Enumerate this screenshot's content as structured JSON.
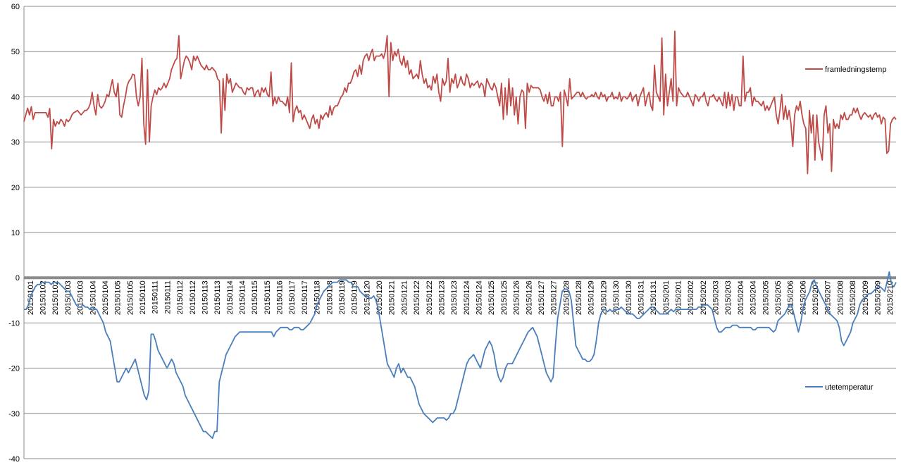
{
  "chart_data": {
    "type": "line",
    "title": "",
    "xlabel": "",
    "ylabel": "",
    "ylim": [
      -40,
      60
    ],
    "yticks": [
      "60",
      "50",
      "40",
      "30",
      "20",
      "10",
      "0",
      "-10",
      "-20",
      "-30",
      "-40"
    ],
    "grid": true,
    "legend_position": "right",
    "x_tick_labels": [
      "20150101",
      "20150102",
      "20150102",
      "20150103",
      "20150103",
      "20150104",
      "20150104",
      "20150105",
      "20150105",
      "20150110",
      "20150111",
      "20150111",
      "20150112",
      "20150112",
      "20150113",
      "20150113",
      "20150114",
      "20150114",
      "20150115",
      "20150115",
      "20150116",
      "20150117",
      "20150117",
      "20150118",
      "20150118",
      "20150119",
      "20150119",
      "20150120",
      "20150120",
      "20150121",
      "20150121",
      "20150122",
      "20150122",
      "20150123",
      "20150123",
      "20150124",
      "20150124",
      "20150125",
      "20150125",
      "20150126",
      "20150126",
      "20150127",
      "20150127",
      "20150128",
      "20150128",
      "20150129",
      "20150129",
      "20150130",
      "20150130",
      "20150131",
      "20150131",
      "20150201",
      "20150201",
      "20150202",
      "20150202",
      "20150203",
      "20150203",
      "20150204",
      "20150204",
      "20150205",
      "20150205",
      "20150206",
      "20150206",
      "20150207",
      "20150207",
      "20150208",
      "20150208",
      "20150209",
      "20150209",
      "20150210"
    ],
    "series": [
      {
        "name": "framledningstemp",
        "color": "#be4b48",
        "values": [
          34.5,
          36,
          37.5,
          36,
          37.8,
          35,
          36.5,
          36.5,
          36.5,
          36.5,
          36.5,
          36.5,
          36.5,
          35.5,
          37.4,
          28.5,
          35,
          33.5,
          34.5,
          34,
          35,
          34.5,
          33.5,
          35,
          34.5,
          35,
          36,
          36.5,
          36.7,
          37,
          36.5,
          36,
          36.5,
          37,
          37,
          37.5,
          38.5,
          41,
          38,
          36,
          40.5,
          38,
          37.5,
          38,
          39,
          40.5,
          40,
          42,
          43.8,
          41,
          40,
          43,
          36,
          35.5,
          38,
          40,
          42.5,
          43.5,
          44,
          45,
          44.8,
          40,
          38,
          40,
          48.5,
          34,
          29.5,
          46,
          30,
          38,
          40,
          41.5,
          40.5,
          42,
          41.5,
          42,
          43,
          42,
          43,
          44,
          46,
          47,
          48,
          48.5,
          53.5,
          44,
          46,
          48,
          49,
          48.5,
          47.5,
          46,
          49,
          48,
          49,
          48,
          47,
          46.5,
          46,
          47,
          46,
          46,
          46.5,
          46,
          45.5,
          44,
          43.5,
          32,
          44,
          37,
          45,
          43,
          44,
          41,
          42,
          43,
          42.5,
          42,
          42,
          41,
          40.5,
          42,
          41.5,
          42,
          42,
          40,
          41,
          41.5,
          40,
          42,
          41,
          42,
          40.5,
          40,
          45.5,
          38,
          40,
          38.5,
          40,
          39,
          39,
          38.5,
          38,
          40,
          36.5,
          47.5,
          34.5,
          37,
          38,
          36.5,
          37,
          35,
          36,
          35,
          34,
          33,
          35,
          36,
          34,
          35,
          33,
          36,
          35,
          36,
          36.5,
          35.5,
          38,
          36,
          37.5,
          38,
          38,
          39,
          40,
          40.5,
          42,
          41,
          43,
          43,
          44,
          45.5,
          46,
          44.5,
          47,
          45,
          48,
          49,
          49.5,
          48,
          49.5,
          50.5,
          48,
          49,
          49,
          49,
          49.5,
          48.5,
          50,
          53.5,
          40,
          52,
          48,
          50,
          49,
          50.5,
          48,
          47,
          49,
          46.5,
          48,
          45,
          46,
          44,
          44.5,
          45,
          44,
          48,
          45,
          43,
          44,
          42,
          42.5,
          41.5,
          44.5,
          43,
          45,
          41,
          39,
          44,
          42.5,
          43.5,
          48.5,
          41,
          44,
          43,
          45,
          42,
          43,
          44.5,
          43,
          42.5,
          45,
          44,
          42,
          43,
          42.5,
          43,
          43.5,
          42,
          43,
          42.5,
          40,
          44,
          43,
          42,
          41.5,
          43,
          42,
          40,
          38,
          43,
          35,
          42,
          36,
          44,
          38,
          42,
          36,
          40,
          34,
          40,
          41.5,
          41,
          33,
          43,
          41,
          42.5,
          42,
          42,
          42,
          42,
          41.5,
          40,
          39,
          40.5,
          38.5,
          41,
          38,
          38,
          40,
          40,
          39,
          41,
          29,
          41.5,
          40,
          38,
          44,
          39.5,
          40,
          40.5,
          41,
          41,
          40,
          41,
          40,
          39.5,
          40,
          40,
          40.5,
          40,
          41,
          40,
          39.5,
          41,
          40,
          40.5,
          39,
          40,
          40,
          41,
          39.5,
          40,
          39.5,
          41,
          39,
          40,
          40,
          39.5,
          40,
          41,
          39,
          40,
          40.5,
          38,
          40,
          41,
          42,
          38,
          40,
          41,
          38,
          37,
          47,
          41,
          40,
          39,
          53,
          36,
          45,
          38,
          41,
          44,
          39,
          54.5,
          38,
          42,
          41,
          40.5,
          40,
          40,
          41,
          40,
          39,
          38,
          40.5,
          40,
          39,
          40,
          40,
          41,
          39,
          38,
          40,
          40,
          40.5,
          39.5,
          39,
          40,
          39,
          38,
          41,
          37.5,
          41,
          38,
          40.5,
          37,
          40,
          40,
          38,
          38,
          49,
          39,
          41,
          41,
          42,
          38,
          40,
          39,
          39,
          38.5,
          38,
          39,
          37,
          38,
          37,
          38,
          39,
          40,
          36,
          34,
          37,
          40.5,
          35,
          38,
          35,
          37,
          34,
          29,
          36,
          38,
          37,
          39,
          36,
          34,
          33,
          23,
          37,
          32,
          36,
          26,
          36,
          30,
          28,
          26,
          36,
          38,
          32,
          34,
          23.5,
          35,
          33,
          34,
          33,
          36,
          35,
          36.5,
          35,
          35,
          36,
          36,
          37.5,
          36.5,
          37.5,
          36,
          35,
          36,
          36.5,
          36,
          35.5,
          36,
          35,
          36,
          36.5,
          35.5,
          36,
          34,
          35.5,
          35,
          27.5,
          28,
          34,
          35,
          35.5,
          35
        ]
      },
      {
        "name": "utetemperatur",
        "color": "#4a7ebb",
        "values": [
          -7,
          -7,
          -6,
          -4,
          -3,
          -2,
          -1.5,
          -1.5,
          -1,
          -1,
          -1,
          -1,
          -1.5,
          -1,
          -1,
          -1,
          -1.5,
          -2,
          -2.5,
          -3,
          -3,
          -4,
          -5,
          -6,
          -6.5,
          -6.5,
          -6,
          -6.5,
          -6.5,
          -7,
          -6.5,
          -7,
          -7,
          -8,
          -9,
          -10,
          -12,
          -13,
          -14,
          -17,
          -20,
          -23,
          -23,
          -22,
          -21,
          -20,
          -21,
          -20,
          -19,
          -18,
          -20,
          -22,
          -24,
          -26,
          -27,
          -25,
          -12.5,
          -12.5,
          -14,
          -16,
          -17,
          -18,
          -19,
          -20,
          -19,
          -18,
          -19,
          -21,
          -22,
          -23,
          -24,
          -26,
          -27,
          -28,
          -29,
          -30,
          -31,
          -32,
          -33,
          -34,
          -34,
          -34.5,
          -35,
          -35.5,
          -34,
          -34,
          -23,
          -21,
          -19,
          -17,
          -16,
          -15,
          -14,
          -13,
          -12.5,
          -12,
          -12,
          -12,
          -12,
          -12,
          -12,
          -12,
          -12,
          -12,
          -12,
          -12,
          -12,
          -12,
          -12,
          -12,
          -13,
          -12,
          -11.5,
          -11,
          -11,
          -11,
          -11,
          -11.5,
          -11.5,
          -11,
          -11,
          -11,
          -11.5,
          -11.5,
          -11,
          -10.5,
          -10,
          -9,
          -8,
          -6,
          -5,
          -4,
          -3,
          -2.5,
          -2,
          -1.5,
          -1,
          -1,
          -1,
          -0.5,
          -0.5,
          -0.5,
          -0.5,
          -1,
          -1,
          -2,
          -2,
          -2,
          -3,
          -3.5,
          -4,
          -4,
          -4.5,
          -4.5,
          -4,
          -5,
          -7,
          -10,
          -13,
          -16,
          -19,
          -20,
          -21,
          -22,
          -20,
          -19,
          -21,
          -20,
          -21,
          -22,
          -22,
          -23,
          -24,
          -26,
          -28,
          -29,
          -30,
          -30.5,
          -31,
          -31.5,
          -32,
          -31.5,
          -31,
          -31,
          -31,
          -31,
          -31.5,
          -31,
          -30,
          -30,
          -29,
          -27,
          -25,
          -23,
          -21,
          -19,
          -18,
          -17.5,
          -17,
          -18,
          -19,
          -20,
          -18,
          -16,
          -15,
          -14,
          -15,
          -17,
          -20,
          -22,
          -23,
          -22,
          -20,
          -19,
          -19,
          -19,
          -18,
          -17,
          -16,
          -15,
          -14,
          -13,
          -12,
          -11.5,
          -11,
          -12,
          -13,
          -15,
          -17,
          -19,
          -21,
          -22,
          -23,
          -22,
          -15,
          -9,
          -6,
          -3,
          -2.5,
          -2.5,
          -3,
          -5,
          -10,
          -15,
          -16,
          -17,
          -18,
          -18,
          -18.5,
          -18.5,
          -18,
          -17,
          -14,
          -10,
          -8,
          -7,
          -7,
          -7.5,
          -7,
          -7.5,
          -7,
          -7,
          -7,
          -6.5,
          -7,
          -7.5,
          -8,
          -8,
          -8,
          -8.5,
          -9,
          -9,
          -8.5,
          -8,
          -7.5,
          -7,
          -6.5,
          -6.5,
          -7,
          -7.5,
          -8,
          -8,
          -8,
          -8,
          -7.5,
          -7,
          -7.5,
          -7,
          -7,
          -7,
          -7,
          -7,
          -7,
          -7,
          -7,
          -7,
          -7,
          -6.5,
          -6.5,
          -6,
          -6,
          -6,
          -6.5,
          -7,
          -9,
          -11,
          -12,
          -12,
          -11.5,
          -11,
          -11,
          -11,
          -10.5,
          -10.5,
          -10.5,
          -11,
          -11,
          -11,
          -11,
          -11,
          -11,
          -11.5,
          -11.5,
          -11,
          -11,
          -11,
          -11,
          -11,
          -11,
          -11.5,
          -12,
          -11.5,
          -9.5,
          -9,
          -8.5,
          -8,
          -7,
          -6,
          -6,
          -8,
          -10,
          -12,
          -10,
          -7,
          -5,
          -4,
          -3,
          -1,
          -0.5,
          -2,
          -3,
          -4,
          -5,
          -6,
          -7,
          -8,
          -8.5,
          -9,
          -9.5,
          -11,
          -14,
          -15,
          -14,
          -13,
          -12,
          -10,
          -9,
          -8,
          -6,
          -5,
          -4.5,
          -4,
          -3.5,
          -3.5,
          -3,
          -2.5,
          -2,
          -2,
          -2.5,
          -3,
          -1,
          1.3,
          -1.5,
          -2,
          -1
        ]
      }
    ]
  }
}
